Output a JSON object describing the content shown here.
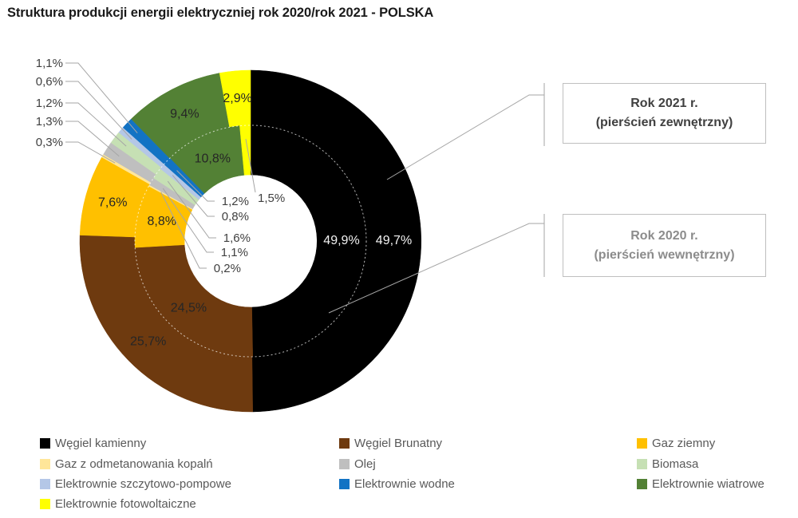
{
  "title": "Struktura produkcji energii elektryczniej rok 2020/rok 2021 - POLSKA",
  "callouts": {
    "outer_ring": {
      "line1": "Rok 2021 r.",
      "line2": "(pierścień zewnętrzny)"
    },
    "inner_ring": {
      "line1": "Rok 2020 r.",
      "line2": "(pierścień wewnętrzny)"
    }
  },
  "chart_data": {
    "type": "pie",
    "subtype": "double-ring-donut",
    "title": "Struktura produkcji energii elektryczniej rok 2020/rok 2021 - POLSKA",
    "start_angle_deg": 0,
    "direction": "clockwise",
    "legend_position": "bottom",
    "categories": [
      "Węgiel kamienny",
      "Węgiel Brunatny",
      "Gaz ziemny",
      "Gaz z odmetanowania kopalń",
      "Olej",
      "Biomasa",
      "Elektrownie szczytowo-pompowe",
      "Elektrownie wodne",
      "Elektrownie wiatrowe",
      "Elektrownie fotowoltaiczne"
    ],
    "colors": [
      "#000000",
      "#6E3A0F",
      "#FFC000",
      "#FFE699",
      "#BFBFBF",
      "#C6E0B4",
      "#B4C7E7",
      "#1273C4",
      "#538135",
      "#FFFF00"
    ],
    "series": [
      {
        "name": "Rok 2021 (pierścień zewnętrzny)",
        "ring": "outer",
        "values": [
          49.7,
          25.7,
          7.6,
          0.3,
          1.3,
          1.2,
          0.6,
          1.1,
          9.4,
          2.9
        ],
        "labels": [
          "49,7%",
          "25,7%",
          "7,6%",
          "0,3%",
          "1,3%",
          "1,2%",
          "0,6%",
          "1,1%",
          "9,4%",
          "2,9%"
        ]
      },
      {
        "name": "Rok 2020 (pierścień wewnętrzny)",
        "ring": "inner",
        "values": [
          49.9,
          24.5,
          8.8,
          0.2,
          1.1,
          1.6,
          0.8,
          1.2,
          10.8,
          1.5
        ],
        "labels": [
          "49,9%",
          "24,5%",
          "8,8%",
          "0,2%",
          "1,1%",
          "1,6%",
          "0,8%",
          "1,2%",
          "10,8%",
          "1,5%"
        ]
      }
    ],
    "label_text_colors": {
      "on_dark": "#F2F2F2",
      "on_light": "#262626",
      "callout": "#404040"
    },
    "leader_line_color": "#A6A6A6"
  }
}
